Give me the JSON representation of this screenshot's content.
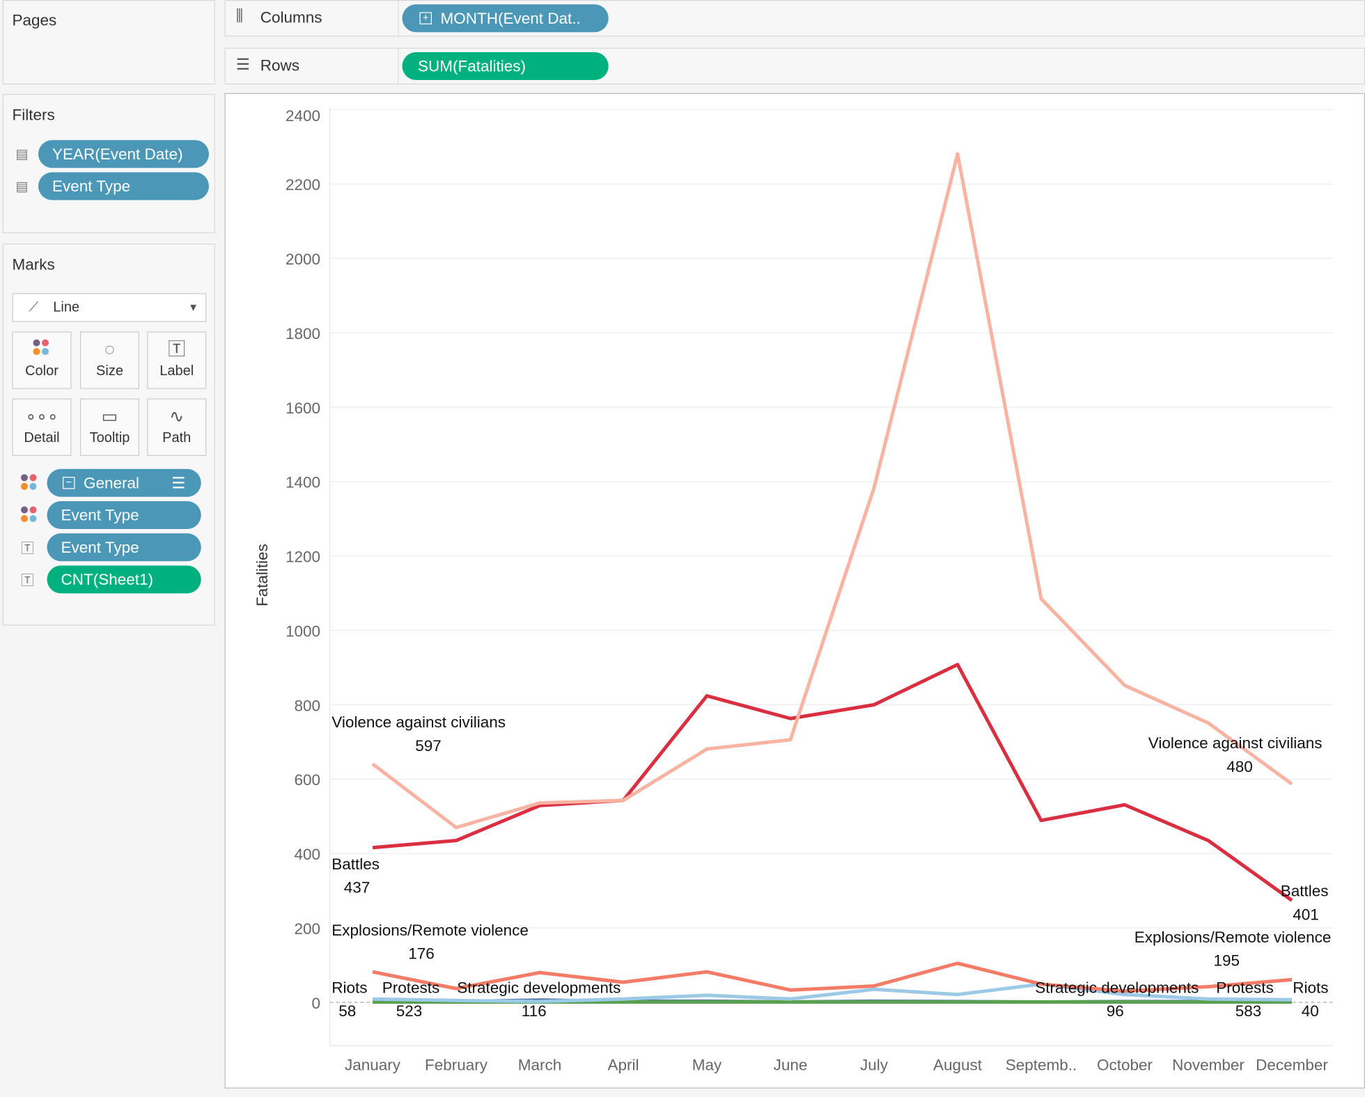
{
  "pages": {
    "title": "Pages"
  },
  "filters": {
    "title": "Filters",
    "items": [
      {
        "label": "YEAR(Event Date)"
      },
      {
        "label": "Event Type"
      }
    ]
  },
  "marks": {
    "title": "Marks",
    "type": "Line",
    "buttons": [
      {
        "label": "Color",
        "icon": "color-dots-icon"
      },
      {
        "label": "Size",
        "icon": "size-icon"
      },
      {
        "label": "Label",
        "icon": "label-icon"
      },
      {
        "label": "Detail",
        "icon": "detail-icon"
      },
      {
        "label": "Tooltip",
        "icon": "tooltip-icon"
      },
      {
        "label": "Path",
        "icon": "path-icon"
      }
    ],
    "fields": [
      {
        "label": "General",
        "kind": "color"
      },
      {
        "label": "Event Type",
        "kind": "color"
      },
      {
        "label": "Event Type",
        "kind": "label"
      },
      {
        "label": "CNT(Sheet1)",
        "kind": "label"
      }
    ]
  },
  "shelves": {
    "columns_label": "Columns",
    "columns_pill": "MONTH(Event Dat..",
    "rows_label": "Rows",
    "rows_pill": "SUM(Fatalities)"
  },
  "chart_data": {
    "type": "line",
    "ylabel": "Fatalities",
    "ylim": [
      0,
      2400
    ],
    "yticks": [
      0,
      200,
      400,
      600,
      800,
      1000,
      1200,
      1400,
      1600,
      1800,
      2000,
      2200,
      2400
    ],
    "grid": true,
    "categories": [
      "January",
      "February",
      "March",
      "April",
      "May",
      "June",
      "July",
      "August",
      "Septemb..",
      "October",
      "November",
      "December"
    ],
    "series": [
      {
        "name": "Violence against civilians",
        "color": "#f9b3a3",
        "values": [
          641,
          470,
          536,
          543,
          681,
          706,
          1383,
          2281,
          1085,
          852,
          751,
          587
        ],
        "start_label": "597",
        "end_label": "480"
      },
      {
        "name": "Battles",
        "color": "#d92f41",
        "values": [
          416,
          435,
          529,
          543,
          824,
          763,
          800,
          908,
          489,
          531,
          435,
          274
        ],
        "start_label": "437",
        "end_label": "401"
      },
      {
        "name": "Explosions/Remote violence",
        "color": "#f47b66",
        "values": [
          82,
          37,
          80,
          54,
          82,
          33,
          44,
          105,
          49,
          30,
          42,
          61
        ],
        "start_label": "176",
        "end_label": "195"
      },
      {
        "name": "Protests",
        "color": "#9ccae6",
        "values": [
          9,
          5,
          2,
          9,
          19,
          9,
          35,
          21,
          49,
          21,
          9,
          7
        ],
        "start_label": "523",
        "end_label": "583"
      },
      {
        "name": "Strategic developments",
        "color": "#59a14f",
        "values": [
          1,
          1,
          1,
          1,
          1,
          1,
          1,
          1,
          1,
          1,
          1,
          1
        ],
        "start_label": "116",
        "end_label": "96"
      },
      {
        "name": "Riots",
        "color": "#4e79a7",
        "values": [
          2,
          2,
          6,
          3,
          3,
          1,
          3,
          2,
          1,
          2,
          2,
          2
        ],
        "start_label": "58",
        "end_label": "40"
      }
    ]
  }
}
